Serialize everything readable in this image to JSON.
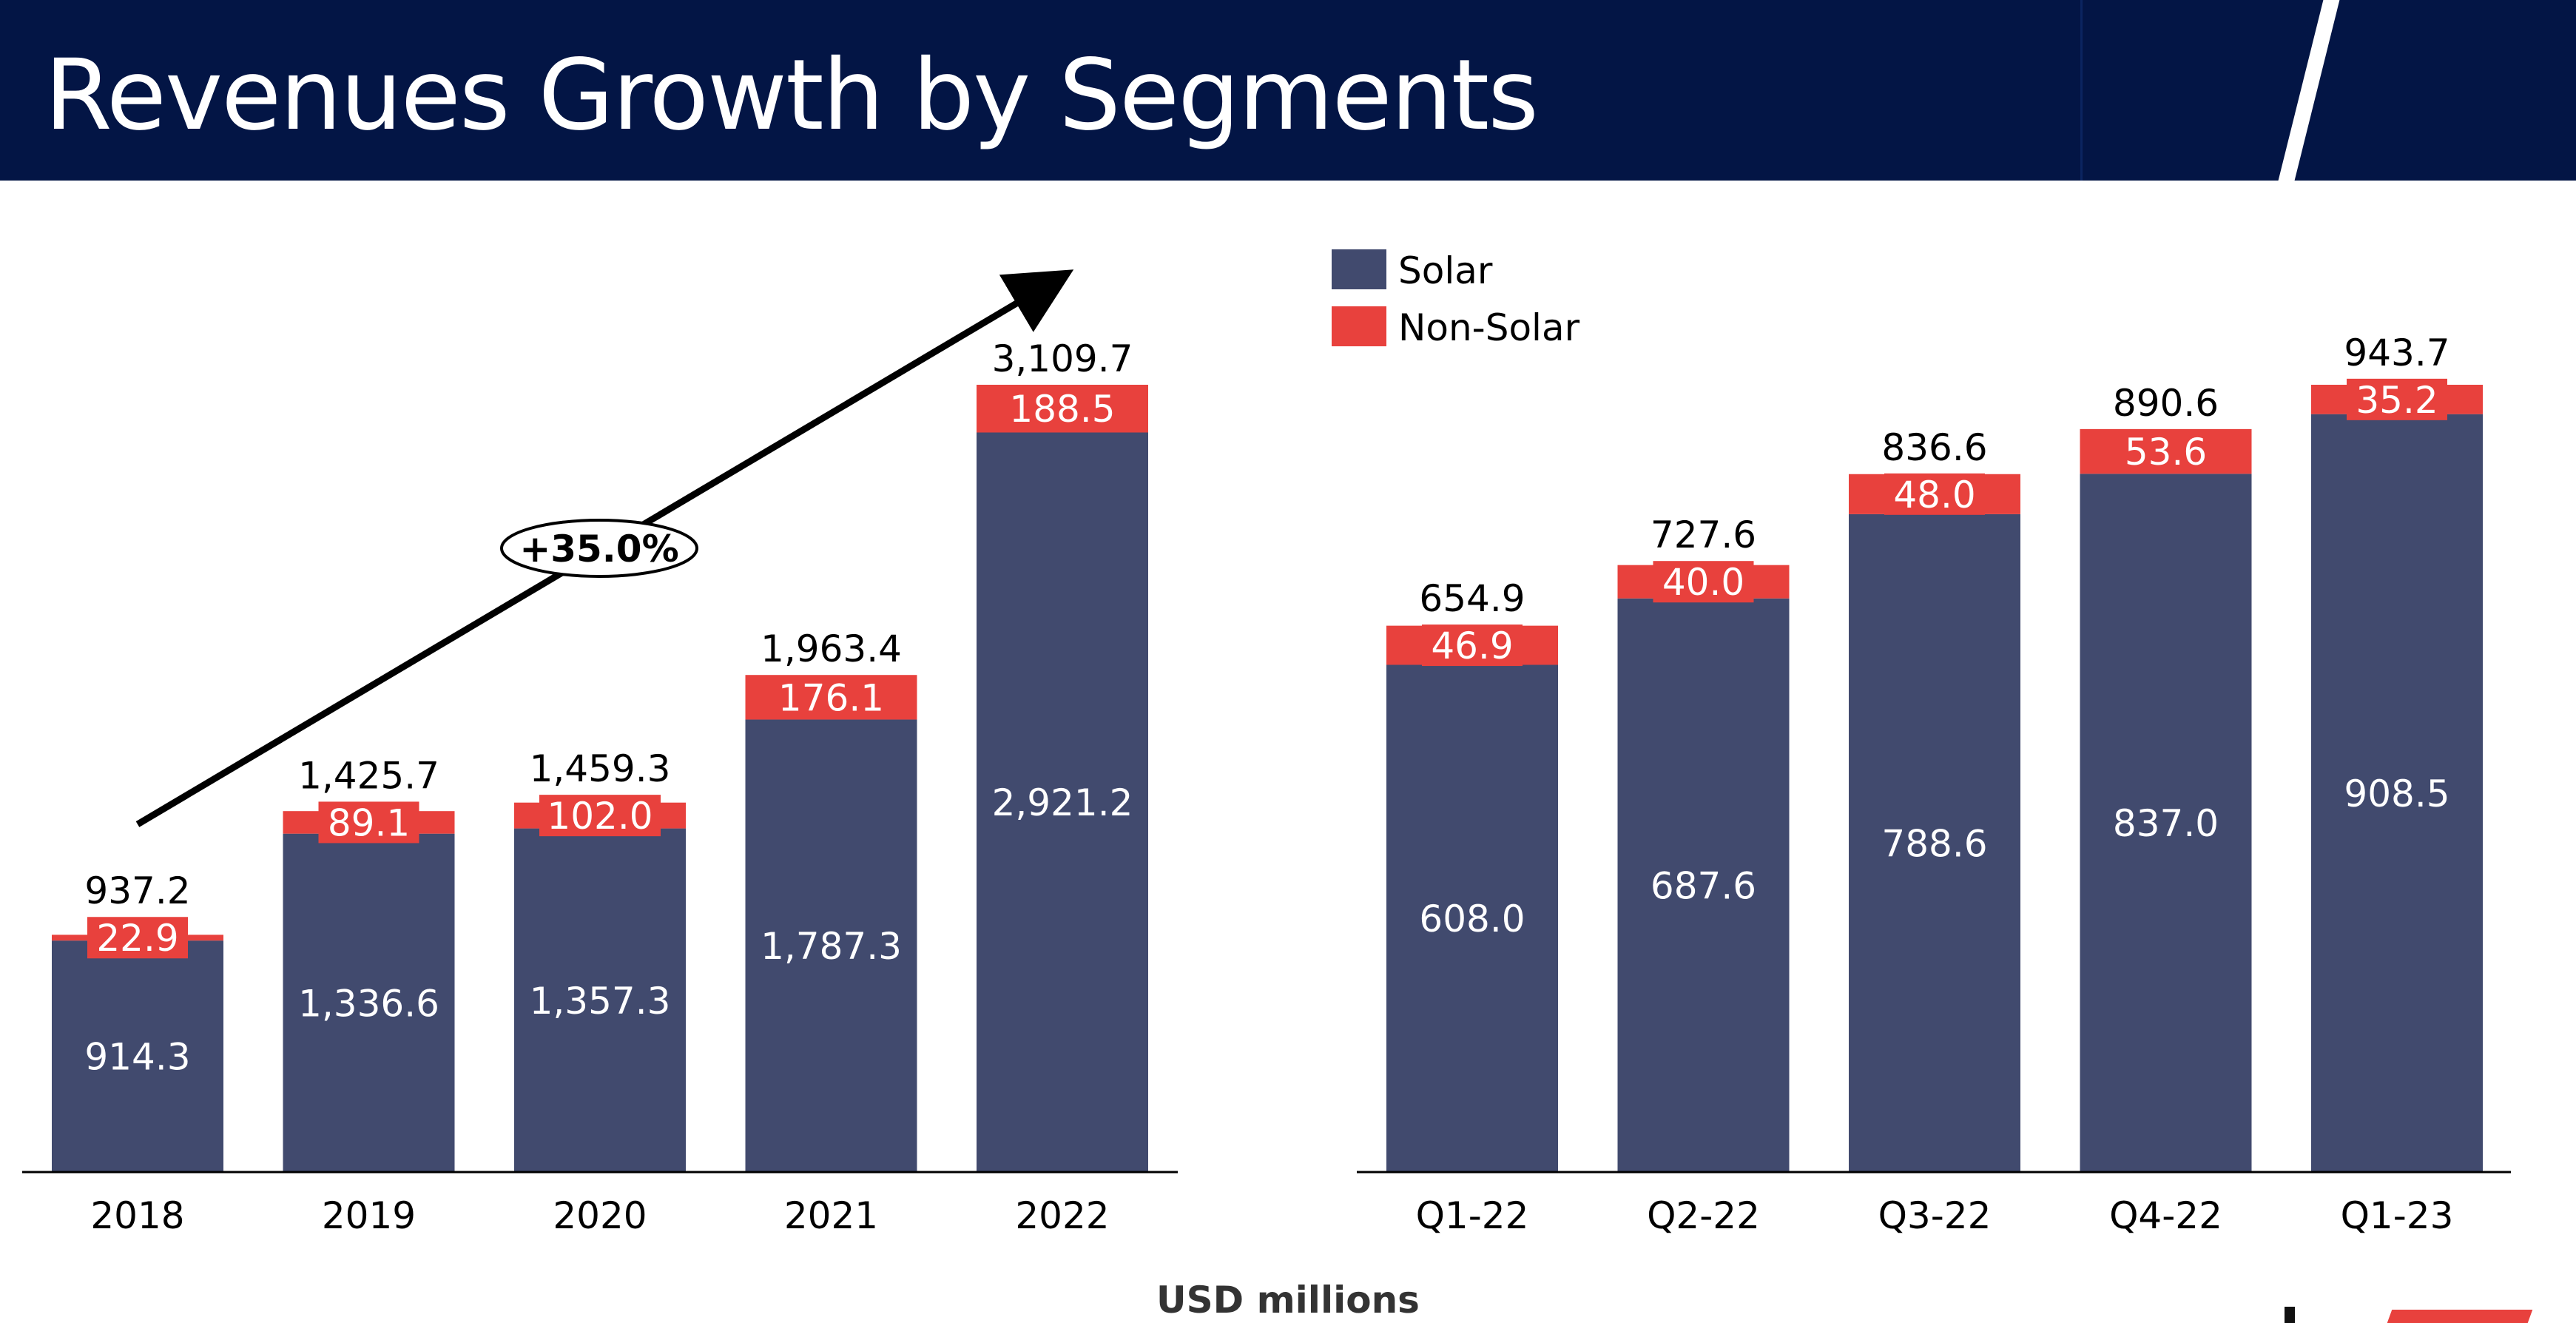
{
  "page": {
    "title": "Revenues Growth by Segments",
    "unit_label": "USD millions"
  },
  "colors": {
    "header_bg": "#031545",
    "solar": "#414a6e",
    "non_solar": "#e8413d"
  },
  "chart_data": [
    {
      "type": "bar",
      "stacked": true,
      "categories": [
        "2018",
        "2019",
        "2020",
        "2021",
        "2022"
      ],
      "series": [
        {
          "name": "Solar",
          "values": [
            914.3,
            1336.6,
            1357.3,
            1787.3,
            2921.2
          ]
        },
        {
          "name": "Non-Solar",
          "values": [
            22.9,
            89.1,
            102.0,
            176.1,
            188.5
          ]
        }
      ],
      "solar_labels": [
        "914.3",
        "1,336.6",
        "1,357.3",
        "1,787.3",
        "2,921.2"
      ],
      "nonsolar_labels": [
        "22.9",
        "89.1",
        "102.0",
        "176.1",
        "188.5"
      ],
      "totals": [
        "937.2",
        "1,425.7",
        "1,459.3",
        "1,963.4",
        "3,109.7"
      ],
      "annotation": "+35.0%",
      "ylim": [
        0,
        3109.7
      ]
    },
    {
      "type": "bar",
      "stacked": true,
      "categories": [
        "Q1-22",
        "Q2-22",
        "Q3-22",
        "Q4-22",
        "Q1-23"
      ],
      "series": [
        {
          "name": "Solar",
          "values": [
            608.0,
            687.6,
            788.6,
            837.0,
            908.5
          ]
        },
        {
          "name": "Non-Solar",
          "values": [
            46.9,
            40.0,
            48.0,
            53.6,
            35.2
          ]
        }
      ],
      "solar_labels": [
        "608.0",
        "687.6",
        "788.6",
        "837.0",
        "908.5"
      ],
      "nonsolar_labels": [
        "46.9",
        "40.0",
        "48.0",
        "53.6",
        "35.2"
      ],
      "totals": [
        "654.9",
        "727.6",
        "836.6",
        "890.6",
        "943.7"
      ],
      "legend": {
        "position": "top-left",
        "entries": [
          "Solar",
          "Non-Solar"
        ]
      },
      "ylim": [
        0,
        943.7
      ]
    }
  ]
}
